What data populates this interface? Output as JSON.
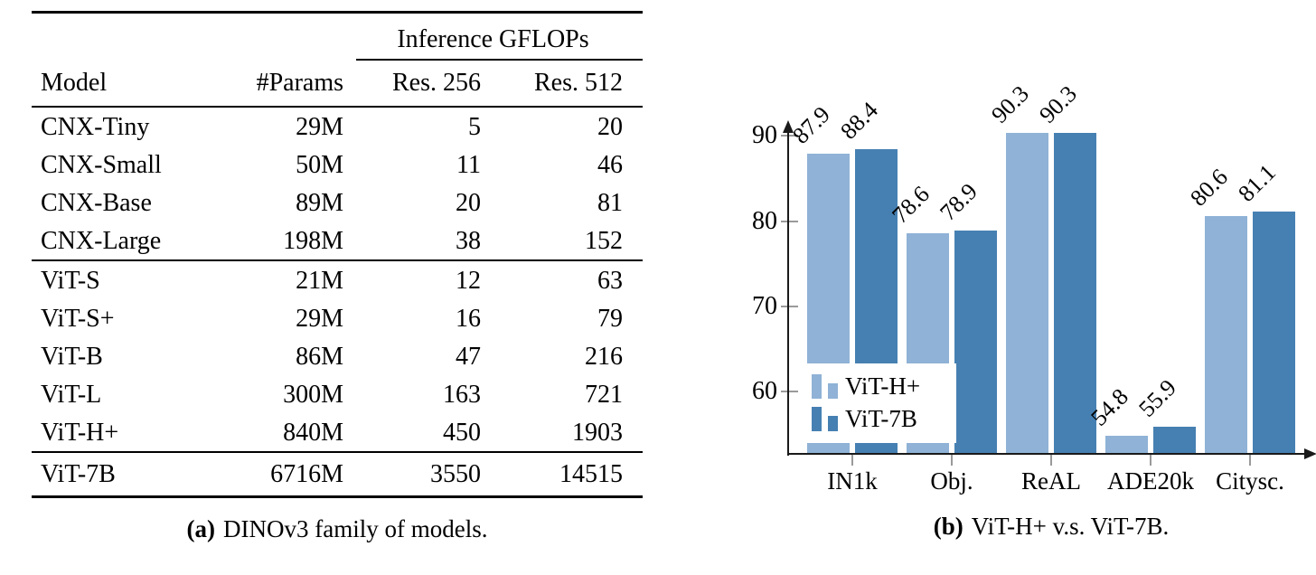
{
  "figure": {
    "panel_a": {
      "caption_label": "(a)",
      "caption_text": "DINOv3 family of models.",
      "table": {
        "span_header": "Inference GFLOPs",
        "columns": [
          "Model",
          "#Params",
          "Res. 256",
          "Res. 512"
        ],
        "groups": [
          [
            [
              "CNX-Tiny",
              "29M",
              "5",
              "20"
            ],
            [
              "CNX-Small",
              "50M",
              "11",
              "46"
            ],
            [
              "CNX-Base",
              "89M",
              "20",
              "81"
            ],
            [
              "CNX-Large",
              "198M",
              "38",
              "152"
            ]
          ],
          [
            [
              "ViT-S",
              "21M",
              "12",
              "63"
            ],
            [
              "ViT-S+",
              "29M",
              "16",
              "79"
            ],
            [
              "ViT-B",
              "86M",
              "47",
              "216"
            ],
            [
              "ViT-L",
              "300M",
              "163",
              "721"
            ],
            [
              "ViT-H+",
              "840M",
              "450",
              "1903"
            ]
          ],
          [
            [
              "ViT-7B",
              "6716M",
              "3550",
              "14515"
            ]
          ]
        ]
      }
    },
    "panel_b": {
      "caption_label": "(b)",
      "caption_text": "ViT-H+ v.s. ViT-7B."
    }
  },
  "chart_data": {
    "type": "bar",
    "title": "",
    "xlabel": "",
    "ylabel": "",
    "categories": [
      "IN1k",
      "Obj.",
      "ReAL",
      "ADE20k",
      "Citysc."
    ],
    "series": [
      {
        "name": "ViT-H+",
        "color": "#8fb2d6",
        "values": [
          87.9,
          78.6,
          90.3,
          54.8,
          80.6
        ]
      },
      {
        "name": "ViT-7B",
        "color": "#4680b2",
        "values": [
          88.4,
          78.9,
          90.3,
          55.9,
          81.1
        ]
      }
    ],
    "yticks": [
      60,
      70,
      80,
      90
    ],
    "ylim": [
      52.7,
      91.8
    ],
    "grid": false,
    "legend_position": "lower left",
    "axis_color": "#1a1a1a",
    "tick_color": "#9a9a9a"
  }
}
